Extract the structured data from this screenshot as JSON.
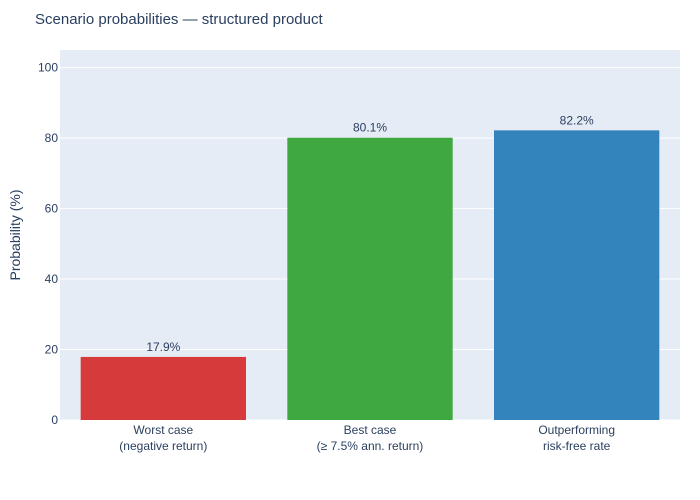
{
  "chart_data": {
    "type": "bar",
    "title": "Scenario probabilities — structured product",
    "xlabel": "",
    "ylabel": "Probability (%)",
    "ylim": [
      0,
      105
    ],
    "yticks": [
      0,
      20,
      40,
      60,
      80,
      100
    ],
    "grid": true,
    "categories": [
      [
        "Worst case",
        "(negative return)"
      ],
      [
        "Best case",
        "(≥ 7.5% ann. return)"
      ],
      [
        "Outperforming",
        "risk-free rate"
      ]
    ],
    "values": [
      17.9,
      80.1,
      82.2
    ],
    "data_labels": [
      "17.9%",
      "80.1%",
      "82.2%"
    ],
    "colors": [
      "#d73a3a",
      "#40a840",
      "#3383bd"
    ],
    "background": "#e5ecf6"
  }
}
